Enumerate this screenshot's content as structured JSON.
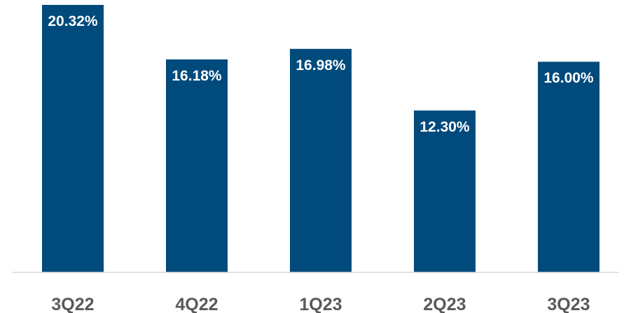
{
  "chart_data": {
    "type": "bar",
    "categories": [
      "3Q22",
      "4Q22",
      "1Q23",
      "2Q23",
      "3Q23"
    ],
    "values": [
      20.32,
      16.18,
      16.98,
      12.3,
      16.0
    ],
    "data_labels": [
      "20.32%",
      "16.18%",
      "16.98%",
      "12.30%",
      "16.00%"
    ],
    "title": "",
    "xlabel": "",
    "ylabel": "",
    "ylim": [
      0,
      20.32
    ],
    "grid": false,
    "legend": "none"
  },
  "colors": {
    "bar": "#004a7c",
    "data_label": "#ffffff",
    "category_label": "#595959",
    "axis": "#d9d9d9"
  }
}
